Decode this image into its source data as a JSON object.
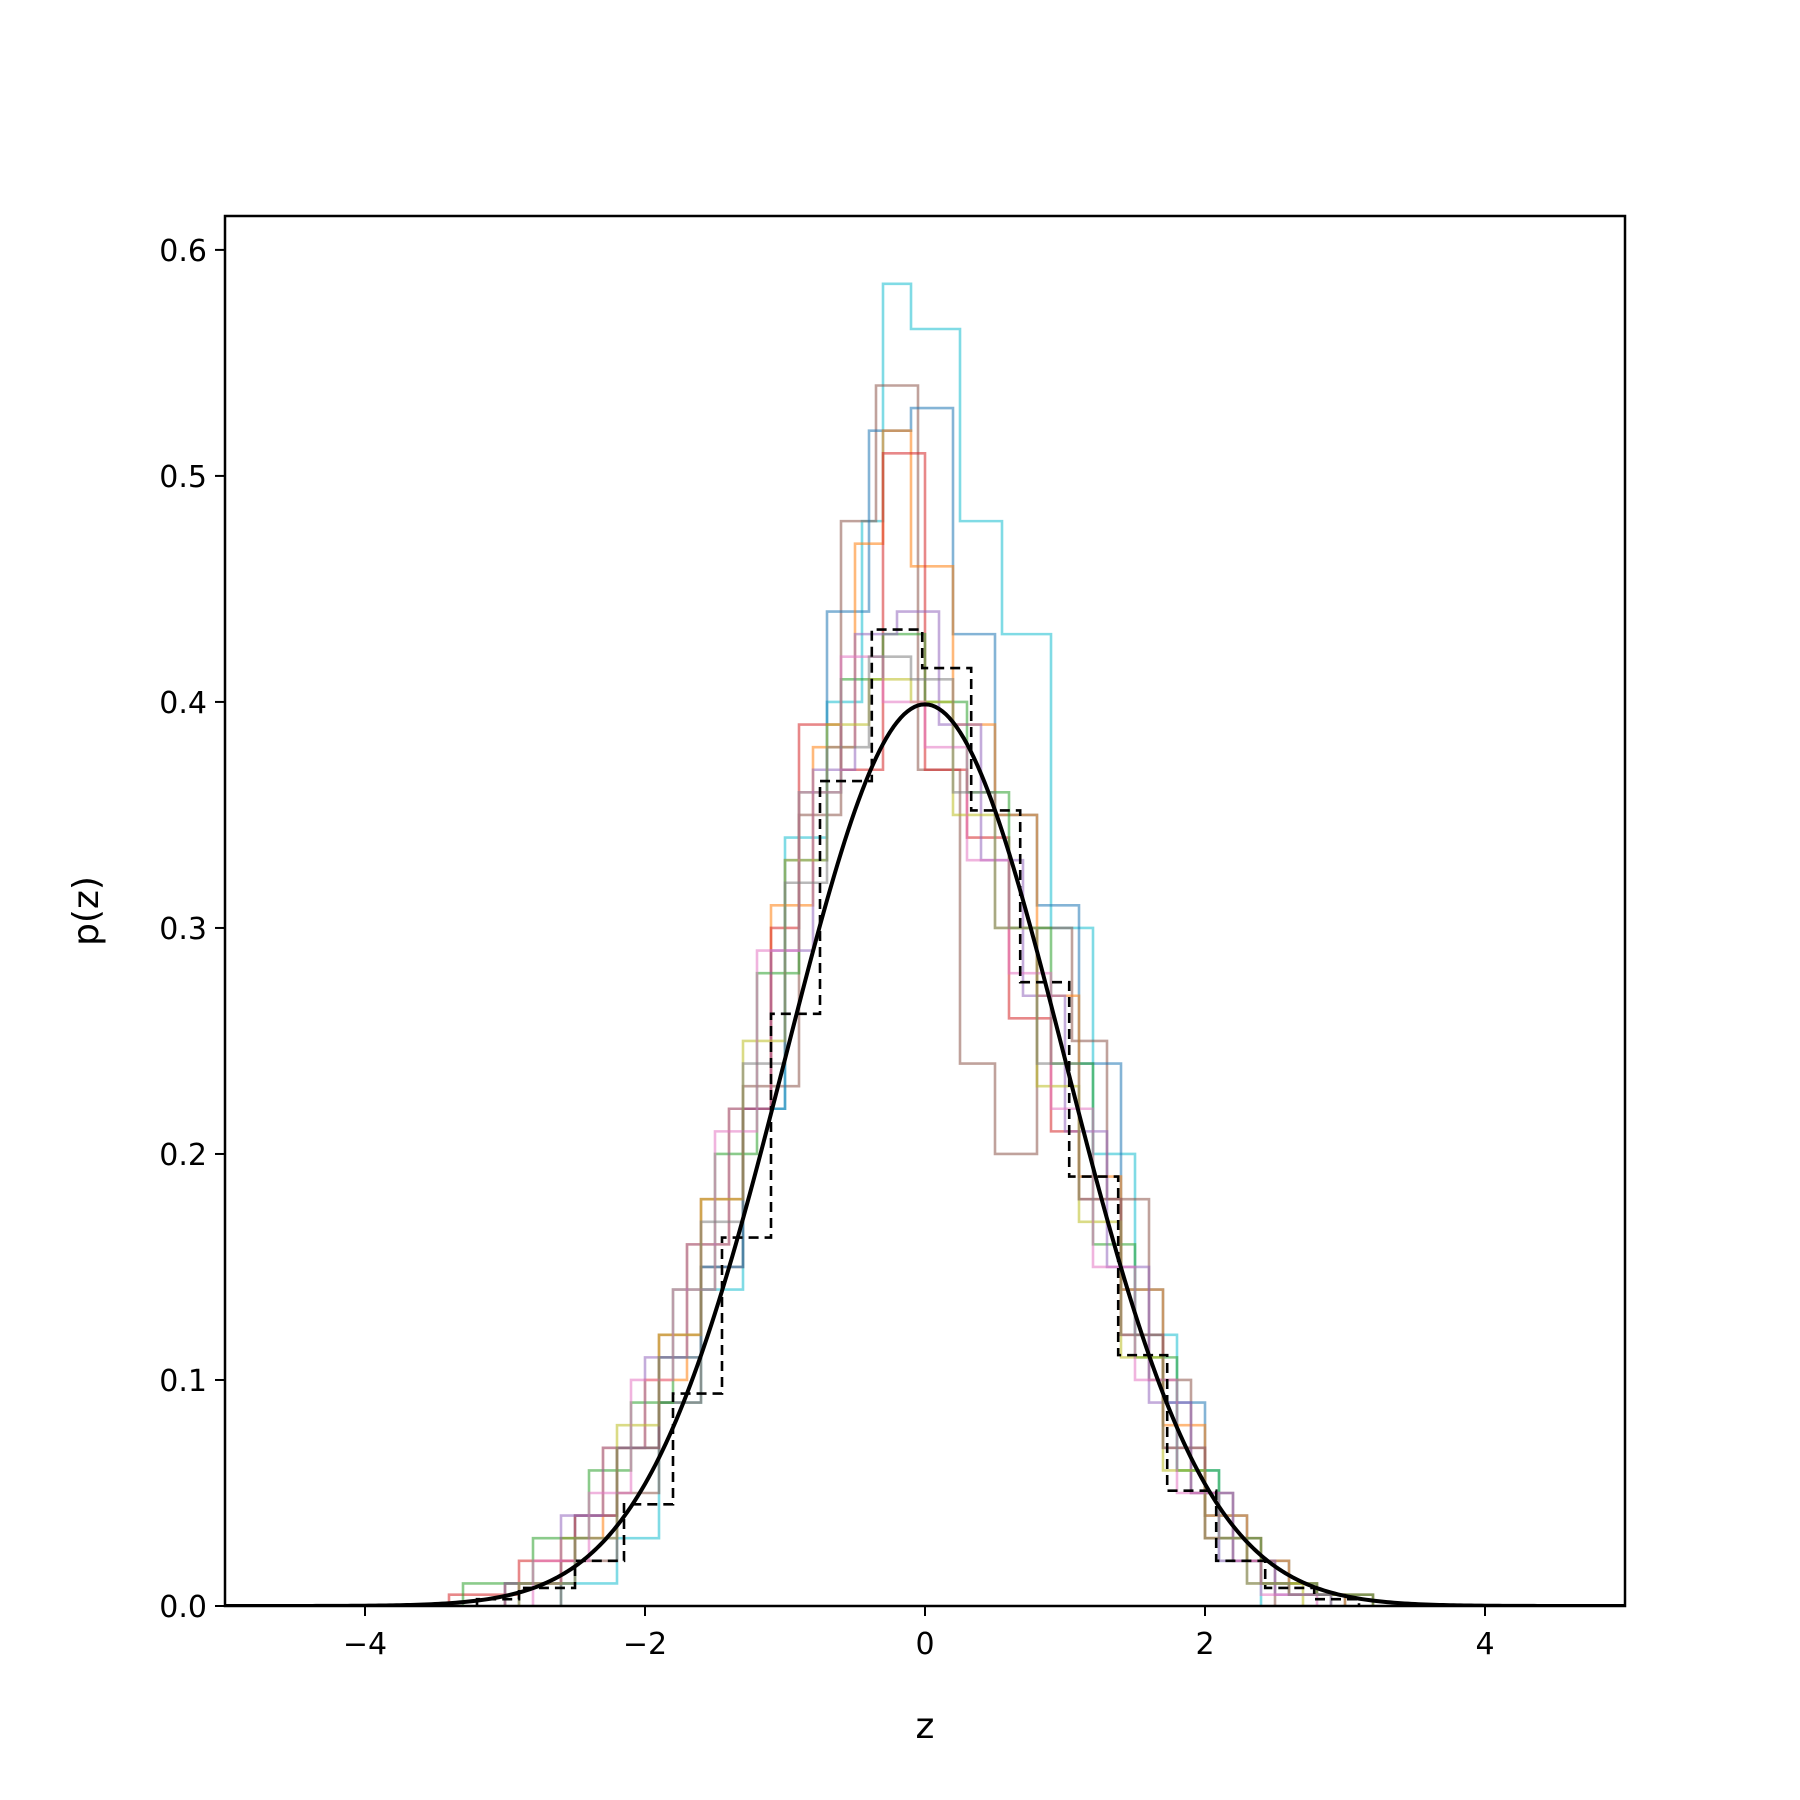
{
  "chart_data": {
    "type": "histogram",
    "xlabel": "z",
    "ylabel": "p(z)",
    "xlim": [
      -5,
      5
    ],
    "ylim": [
      0,
      0.615
    ],
    "xticks": [
      -4,
      -2,
      0,
      2,
      4
    ],
    "xtick_labels": [
      "−4",
      "−2",
      "0",
      "2",
      "4"
    ],
    "yticks": [
      0.0,
      0.1,
      0.2,
      0.3,
      0.4,
      0.5,
      0.6
    ],
    "ytick_labels": [
      "0.0",
      "0.1",
      "0.2",
      "0.3",
      "0.4",
      "0.5",
      "0.6"
    ],
    "grid": false,
    "legend": "none",
    "series": [
      {
        "style": "step",
        "color": "#17becf",
        "opacity": 0.55,
        "edges": [
          -2.6,
          -2.2,
          -1.9,
          -1.6,
          -1.3,
          -1.0,
          -0.7,
          -0.45,
          -0.3,
          -0.1,
          0.1,
          0.25,
          0.55,
          0.9,
          1.2,
          1.5,
          1.8,
          2.1,
          2.4
        ],
        "densities": [
          0.01,
          0.03,
          0.09,
          0.14,
          0.22,
          0.34,
          0.4,
          0.48,
          0.585,
          0.565,
          0.565,
          0.48,
          0.43,
          0.3,
          0.2,
          0.12,
          0.06,
          0.02
        ]
      },
      {
        "style": "step",
        "color": "#8c564b",
        "opacity": 0.55,
        "edges": [
          -2.6,
          -2.2,
          -1.9,
          -1.6,
          -1.3,
          -0.9,
          -0.6,
          -0.35,
          -0.05,
          0.25,
          0.5,
          0.8,
          1.05,
          1.3,
          1.6,
          1.9,
          2.2,
          2.5
        ],
        "densities": [
          0.02,
          0.05,
          0.09,
          0.15,
          0.23,
          0.35,
          0.48,
          0.54,
          0.37,
          0.24,
          0.2,
          0.3,
          0.25,
          0.18,
          0.1,
          0.05,
          0.02
        ]
      },
      {
        "style": "step",
        "color": "#1f77b4",
        "opacity": 0.55,
        "edges": [
          -3.0,
          -2.5,
          -2.2,
          -1.9,
          -1.6,
          -1.3,
          -1.0,
          -0.7,
          -0.4,
          -0.1,
          0.2,
          0.5,
          0.8,
          1.1,
          1.4,
          1.7,
          2.0,
          2.3,
          2.6,
          3.0
        ],
        "densities": [
          0.01,
          0.04,
          0.07,
          0.11,
          0.15,
          0.22,
          0.33,
          0.44,
          0.52,
          0.53,
          0.43,
          0.35,
          0.31,
          0.24,
          0.14,
          0.09,
          0.04,
          0.02,
          0.005
        ]
      },
      {
        "style": "step",
        "color": "#ff7f0e",
        "opacity": 0.55,
        "edges": [
          -3.0,
          -2.6,
          -2.3,
          -2.0,
          -1.7,
          -1.4,
          -1.1,
          -0.8,
          -0.5,
          -0.3,
          -0.1,
          0.2,
          0.5,
          0.8,
          1.1,
          1.4,
          1.7,
          2.0,
          2.3,
          2.6,
          3.0
        ],
        "densities": [
          0.01,
          0.03,
          0.07,
          0.1,
          0.16,
          0.22,
          0.31,
          0.38,
          0.47,
          0.52,
          0.46,
          0.39,
          0.35,
          0.27,
          0.19,
          0.14,
          0.08,
          0.04,
          0.02,
          0.005
        ]
      },
      {
        "style": "step",
        "color": "#d62728",
        "opacity": 0.55,
        "edges": [
          -3.4,
          -2.9,
          -2.5,
          -2.2,
          -1.9,
          -1.6,
          -1.3,
          -1.1,
          -0.9,
          -0.6,
          -0.3,
          0.0,
          0.3,
          0.6,
          0.9,
          1.1,
          1.4,
          1.7,
          2.0,
          2.4,
          2.8,
          3.2
        ],
        "densities": [
          0.005,
          0.02,
          0.04,
          0.07,
          0.12,
          0.18,
          0.22,
          0.3,
          0.39,
          0.37,
          0.51,
          0.37,
          0.34,
          0.26,
          0.21,
          0.18,
          0.12,
          0.07,
          0.03,
          0.01,
          0.005
        ]
      },
      {
        "style": "step",
        "color": "#2ca02c",
        "opacity": 0.55,
        "edges": [
          -3.3,
          -2.8,
          -2.4,
          -2.1,
          -1.8,
          -1.5,
          -1.2,
          -0.9,
          -0.6,
          -0.3,
          0.0,
          0.3,
          0.6,
          0.9,
          1.2,
          1.5,
          1.8,
          2.1,
          2.4,
          2.8,
          3.2
        ],
        "densities": [
          0.01,
          0.03,
          0.06,
          0.09,
          0.14,
          0.2,
          0.28,
          0.36,
          0.41,
          0.43,
          0.4,
          0.36,
          0.3,
          0.24,
          0.16,
          0.11,
          0.06,
          0.03,
          0.01,
          0.005
        ]
      },
      {
        "style": "step",
        "color": "#9467bd",
        "opacity": 0.55,
        "edges": [
          -3.0,
          -2.6,
          -2.3,
          -2.0,
          -1.7,
          -1.4,
          -1.1,
          -0.8,
          -0.5,
          -0.2,
          0.1,
          0.4,
          0.7,
          1.0,
          1.3,
          1.6,
          1.9,
          2.2,
          2.5,
          2.9
        ],
        "densities": [
          0.01,
          0.04,
          0.07,
          0.11,
          0.16,
          0.22,
          0.29,
          0.37,
          0.43,
          0.44,
          0.39,
          0.33,
          0.27,
          0.21,
          0.15,
          0.09,
          0.05,
          0.02,
          0.005
        ]
      },
      {
        "style": "step",
        "color": "#bcbd22",
        "opacity": 0.55,
        "edges": [
          -2.9,
          -2.5,
          -2.2,
          -1.9,
          -1.6,
          -1.3,
          -1.0,
          -0.7,
          -0.4,
          -0.1,
          0.2,
          0.5,
          0.8,
          1.1,
          1.4,
          1.7,
          2.0,
          2.3,
          2.7
        ],
        "densities": [
          0.01,
          0.03,
          0.08,
          0.12,
          0.18,
          0.25,
          0.33,
          0.39,
          0.41,
          0.4,
          0.35,
          0.3,
          0.23,
          0.17,
          0.11,
          0.06,
          0.03,
          0.01
        ]
      },
      {
        "style": "step",
        "color": "#e377c2",
        "opacity": 0.55,
        "edges": [
          -2.8,
          -2.4,
          -2.1,
          -1.8,
          -1.5,
          -1.2,
          -0.9,
          -0.6,
          -0.3,
          0.0,
          0.3,
          0.6,
          0.9,
          1.2,
          1.5,
          1.8,
          2.1,
          2.4,
          2.8
        ],
        "densities": [
          0.02,
          0.05,
          0.1,
          0.14,
          0.21,
          0.29,
          0.36,
          0.42,
          0.4,
          0.38,
          0.33,
          0.28,
          0.22,
          0.15,
          0.1,
          0.05,
          0.02,
          0.005
        ]
      },
      {
        "style": "step",
        "color": "#7f7f7f",
        "opacity": 0.55,
        "edges": [
          -2.9,
          -2.5,
          -2.2,
          -1.9,
          -1.6,
          -1.3,
          -1.0,
          -0.7,
          -0.4,
          -0.1,
          0.2,
          0.5,
          0.8,
          1.1,
          1.4,
          1.7,
          2.0,
          2.3,
          2.6,
          2.9
        ],
        "densities": [
          0.01,
          0.03,
          0.07,
          0.11,
          0.17,
          0.24,
          0.32,
          0.38,
          0.42,
          0.41,
          0.36,
          0.3,
          0.24,
          0.18,
          0.12,
          0.07,
          0.03,
          0.01,
          0.005
        ]
      },
      {
        "style": "step-dashed",
        "color": "#000000",
        "opacity": 1,
        "edges": [
          -3.2,
          -2.9,
          -2.5,
          -2.15,
          -1.8,
          -1.45,
          -1.1,
          -0.75,
          -0.38,
          -0.02,
          0.33,
          0.68,
          1.03,
          1.38,
          1.73,
          2.08,
          2.43,
          2.78,
          3.1
        ],
        "densities": [
          0.003,
          0.008,
          0.02,
          0.045,
          0.094,
          0.163,
          0.262,
          0.365,
          0.432,
          0.415,
          0.352,
          0.276,
          0.19,
          0.111,
          0.051,
          0.02,
          0.008,
          0.003
        ]
      },
      {
        "style": "line",
        "color": "#000000",
        "opacity": 1,
        "function": "standard_normal_pdf",
        "x_range": [
          -5,
          5
        ]
      }
    ]
  }
}
